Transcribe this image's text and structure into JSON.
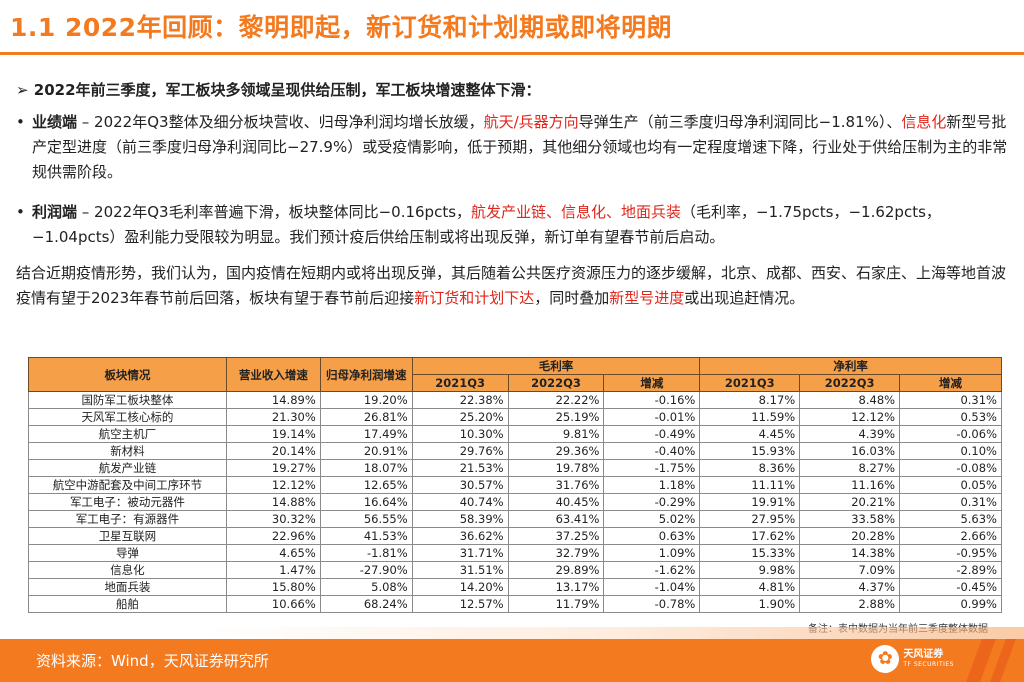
{
  "title": "1.1 2022年回顾：黎明即起，新订货和计划期或即将明朗",
  "heading": "2022年前三季度，军工板块多领域呈现供给压制，军工板块增速整体下滑：",
  "bullet1": {
    "label": "业绩端",
    "t1": " – 2022年Q3整体及细分板块营收、归母净利润均增长放缓，",
    "r1": "航天/兵器方向",
    "t2": "导弹生产（前三季度归母净利润同比−1.81%）、",
    "r2": "信息化",
    "t3": "新型号批产定型进度（前三季度归母净利润同比−27.9%）或受疫情影响，低于预期，其他细分领域也均有一定程度增速下降，行业处于供给压制为主的非常规供需阶段。"
  },
  "bullet2": {
    "label": "利润端",
    "t1": " – 2022年Q3毛利率普遍下滑，板块整体同比−0.16pcts，",
    "r1": "航发产业链、信息化、地面兵装",
    "t2": "（毛利率，−1.75pcts，−1.62pcts，−1.04pcts）盈利能力受限较为明显。我们预计疫后供给压制或将出现反弹，新订单有望春节前后启动。"
  },
  "para": {
    "t1": "结合近期疫情形势，我们认为，国内疫情在短期内或将出现反弹，其后随着公共医疗资源压力的逐步缓解，北京、成都、西安、石家庄、上海等地首波疫情有望于2023年春节前后回落，板块有望于春节前后迎接",
    "r1": "新订货和计划下达",
    "t2": "，同时叠加",
    "r2": "新型号进度",
    "t3": "或出现追赶情况。"
  },
  "table": {
    "h_sector": "板块情况",
    "h_revenue": "营业收入增速",
    "h_profit": "归母净利润增速",
    "h_gross": "毛利率",
    "h_net": "净利率",
    "sub": [
      "2021Q3",
      "2022Q3",
      "增减",
      "2021Q3",
      "2022Q3",
      "增减"
    ],
    "rows": [
      [
        "国防军工板块整体",
        "14.89%",
        "19.20%",
        "22.38%",
        "22.22%",
        "-0.16%",
        "8.17%",
        "8.48%",
        "0.31%"
      ],
      [
        "天风军工核心标的",
        "21.30%",
        "26.81%",
        "25.20%",
        "25.19%",
        "-0.01%",
        "11.59%",
        "12.12%",
        "0.53%"
      ],
      [
        "航空主机厂",
        "19.14%",
        "17.49%",
        "10.30%",
        "9.81%",
        "-0.49%",
        "4.45%",
        "4.39%",
        "-0.06%"
      ],
      [
        "新材料",
        "20.14%",
        "20.91%",
        "29.76%",
        "29.36%",
        "-0.40%",
        "15.93%",
        "16.03%",
        "0.10%"
      ],
      [
        "航发产业链",
        "19.27%",
        "18.07%",
        "21.53%",
        "19.78%",
        "-1.75%",
        "8.36%",
        "8.27%",
        "-0.08%"
      ],
      [
        "航空中游配套及中间工序环节",
        "12.12%",
        "12.65%",
        "30.57%",
        "31.76%",
        "1.18%",
        "11.11%",
        "11.16%",
        "0.05%"
      ],
      [
        "军工电子：被动元器件",
        "14.88%",
        "16.64%",
        "40.74%",
        "40.45%",
        "-0.29%",
        "19.91%",
        "20.21%",
        "0.31%"
      ],
      [
        "军工电子：有源器件",
        "30.32%",
        "56.55%",
        "58.39%",
        "63.41%",
        "5.02%",
        "27.95%",
        "33.58%",
        "5.63%"
      ],
      [
        "卫星互联网",
        "22.96%",
        "41.53%",
        "36.62%",
        "37.25%",
        "0.63%",
        "17.62%",
        "20.28%",
        "2.66%"
      ],
      [
        "导弹",
        "4.65%",
        "-1.81%",
        "31.71%",
        "32.79%",
        "1.09%",
        "15.33%",
        "14.38%",
        "-0.95%"
      ],
      [
        "信息化",
        "1.47%",
        "-27.90%",
        "31.51%",
        "29.89%",
        "-1.62%",
        "9.98%",
        "7.09%",
        "-2.89%"
      ],
      [
        "地面兵装",
        "15.80%",
        "5.08%",
        "14.20%",
        "13.17%",
        "-1.04%",
        "4.81%",
        "4.37%",
        "-0.45%"
      ],
      [
        "船舶",
        "10.66%",
        "68.24%",
        "12.57%",
        "11.79%",
        "-0.78%",
        "1.90%",
        "2.88%",
        "0.99%"
      ]
    ]
  },
  "note": "备注：表中数据为当年前三季度整体数据",
  "source": "资料来源：Wind，天风证券研究所",
  "logo": {
    "name": "天风证券",
    "sub": "TF SECURITIES",
    "icon": "tf-flower-icon"
  }
}
